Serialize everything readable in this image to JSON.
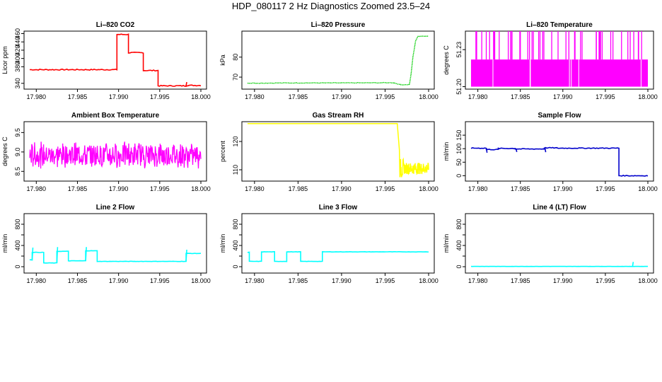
{
  "figure_title": "HDP_080117  2 Hz Diagnostics Zoomed 23.5–24",
  "chart_data": [
    {
      "id": "co2",
      "type": "line",
      "title": "Li–820 CO2",
      "ylabel": "Licor ppm",
      "color": "#ff0000",
      "xlim": [
        17.9792,
        18.0
      ],
      "ylim": [
        326,
        466
      ],
      "xticks": [
        "17.980",
        "17.985",
        "17.990",
        "17.995",
        "18.000"
      ],
      "yticks": [
        340,
        380,
        400,
        420,
        440,
        460
      ],
      "series": [
        {
          "name": "CO2",
          "style": "step",
          "noise": 1.2,
          "segments": [
            [
              17.9792,
              17.9898,
              373
            ],
            [
              17.9898,
              17.9912,
              458
            ],
            [
              17.9912,
              17.993,
              414
            ],
            [
              17.993,
              17.9948,
              371
            ],
            [
              17.9948,
              17.9982,
              334
            ],
            [
              17.9982,
              18.0,
              335
            ]
          ],
          "spikes": [
            [
              17.9982,
              343
            ]
          ]
        }
      ]
    },
    {
      "id": "pressure",
      "type": "line",
      "title": "Li–820 Pressure",
      "ylabel": "kPa",
      "color": "#00cc00",
      "xlim": [
        17.9792,
        18.0
      ],
      "ylim": [
        64,
        93
      ],
      "xticks": [
        "17.980",
        "17.985",
        "17.990",
        "17.995",
        "18.000"
      ],
      "yticks": [
        70,
        80
      ],
      "series": [
        {
          "name": "Pressure",
          "style": "points",
          "points": [
            [
              17.9792,
              67.0
            ],
            [
              17.985,
              67.1
            ],
            [
              17.99,
              67.1
            ],
            [
              17.996,
              67.2
            ],
            [
              17.9968,
              66.2
            ],
            [
              17.9978,
              66.3
            ],
            [
              17.998,
              72
            ],
            [
              17.9982,
              80
            ],
            [
              17.9985,
              88
            ],
            [
              17.9988,
              90.5
            ],
            [
              18.0,
              90.5
            ]
          ]
        }
      ]
    },
    {
      "id": "li820temp",
      "type": "line",
      "title": "Li–820 Temperature",
      "ylabel": "degrees C",
      "color": "#ff00ff",
      "xlim": [
        17.9792,
        18.0
      ],
      "ylim": [
        51.198,
        51.245
      ],
      "xticks": [
        "17.980",
        "17.985",
        "17.990",
        "17.995",
        "18.000"
      ],
      "yticks": [
        51.2,
        51.23
      ],
      "tick_labels": [
        "51.20",
        "51.23"
      ],
      "series": [
        {
          "name": "Temp",
          "style": "fill",
          "low": 51.2,
          "high": 51.222,
          "top": 51.245
        }
      ]
    },
    {
      "id": "ambient",
      "type": "line",
      "title": "Ambient Box Temperature",
      "ylabel": "degrees C",
      "color": "#ff00ff",
      "xlim": [
        17.9792,
        18.0
      ],
      "ylim": [
        8.25,
        9.78
      ],
      "xticks": [
        "17.980",
        "17.985",
        "17.990",
        "17.995",
        "18.000"
      ],
      "yticks": [
        8.5,
        9.0,
        9.5
      ],
      "tick_labels": [
        "8.5",
        "9.0",
        "9.5"
      ],
      "series": [
        {
          "name": "Ambient",
          "style": "noise",
          "center": 8.92,
          "amp": 0.34
        }
      ]
    },
    {
      "id": "rh",
      "type": "line",
      "title": "Gas Stream RH",
      "ylabel": "percent",
      "color": "#ffff00",
      "xlim": [
        17.9792,
        18.0
      ],
      "ylim": [
        106,
        127
      ],
      "xticks": [
        "17.980",
        "17.985",
        "17.990",
        "17.995",
        "18.000"
      ],
      "yticks": [
        110,
        120
      ],
      "series": [
        {
          "name": "RH",
          "style": "rh",
          "level": 126.3,
          "drop_at": 17.9964,
          "after": 110.5
        }
      ]
    },
    {
      "id": "sampleflow",
      "type": "line",
      "title": "Sample Flow",
      "ylabel": "ml/min",
      "color": "#0000cc",
      "xlim": [
        17.9792,
        18.0
      ],
      "ylim": [
        -20,
        200
      ],
      "xticks": [
        "17.980",
        "17.985",
        "17.990",
        "17.995",
        "18.000"
      ],
      "yticks": [
        0,
        50,
        100,
        150
      ],
      "series": [
        {
          "name": "Sample",
          "style": "step",
          "noise": 1.5,
          "segments": [
            [
              17.9792,
              17.981,
              102
            ],
            [
              17.981,
              17.9824,
              97
            ],
            [
              17.9824,
              17.9844,
              101
            ],
            [
              17.9844,
              17.9878,
              99
            ],
            [
              17.9878,
              17.9893,
              103
            ],
            [
              17.9893,
              17.9966,
              102
            ],
            [
              17.9966,
              18.0,
              0
            ]
          ],
          "spikes": [
            [
              17.981,
              85
            ],
            [
              17.9845,
              88
            ],
            [
              17.9879,
              87
            ]
          ]
        }
      ]
    },
    {
      "id": "line2",
      "type": "line",
      "title": "Line 2 Flow",
      "ylabel": "ml/min",
      "color": "#00ffff",
      "xlim": [
        17.9792,
        18.0
      ],
      "ylim": [
        -120,
        1000
      ],
      "xticks": [
        "17.980",
        "17.985",
        "17.990",
        "17.995",
        "18.000"
      ],
      "yticks": [
        0,
        400,
        800
      ],
      "minor_yticks": [
        200,
        600
      ],
      "series": [
        {
          "name": "Line2",
          "style": "step",
          "noise": 3,
          "segments": [
            [
              17.9792,
              17.9795,
              130
            ],
            [
              17.9795,
              17.9809,
              270
            ],
            [
              17.9809,
              17.9825,
              70
            ],
            [
              17.9825,
              17.9839,
              290
            ],
            [
              17.9839,
              17.986,
              110
            ],
            [
              17.986,
              17.9874,
              300
            ],
            [
              17.9874,
              17.9982,
              100
            ],
            [
              17.9982,
              18.0,
              250
            ]
          ],
          "spikes": [
            [
              17.9795,
              360
            ],
            [
              17.9825,
              370
            ],
            [
              17.986,
              370
            ],
            [
              17.9982,
              320
            ]
          ]
        }
      ]
    },
    {
      "id": "line3",
      "type": "line",
      "title": "Line 3 Flow",
      "ylabel": "ml/min",
      "color": "#00ffff",
      "xlim": [
        17.9792,
        18.0
      ],
      "ylim": [
        -120,
        1000
      ],
      "xticks": [
        "17.980",
        "17.985",
        "17.990",
        "17.995",
        "18.000"
      ],
      "yticks": [
        0,
        400,
        800
      ],
      "minor_yticks": [
        200,
        600
      ],
      "series": [
        {
          "name": "Line3",
          "style": "step",
          "noise": 3,
          "segments": [
            [
              17.9792,
              17.9794,
              270
            ],
            [
              17.9794,
              17.9808,
              100
            ],
            [
              17.9808,
              17.9823,
              280
            ],
            [
              17.9823,
              17.9837,
              100
            ],
            [
              17.9837,
              17.9853,
              280
            ],
            [
              17.9853,
              17.9878,
              100
            ],
            [
              17.9878,
              18.0,
              280
            ]
          ],
          "spikes": []
        }
      ]
    },
    {
      "id": "line4",
      "type": "line",
      "title": "Line 4 (LT) Flow",
      "ylabel": "ml/min",
      "color": "#00ffff",
      "xlim": [
        17.9792,
        18.0
      ],
      "ylim": [
        -120,
        1000
      ],
      "xticks": [
        "17.980",
        "17.985",
        "17.990",
        "17.995",
        "18.000"
      ],
      "yticks": [
        0,
        400,
        800
      ],
      "minor_yticks": [
        200,
        600
      ],
      "series": [
        {
          "name": "Line4",
          "style": "step",
          "noise": 1,
          "segments": [
            [
              17.9792,
              17.9982,
              5
            ],
            [
              17.9982,
              18.0,
              5
            ]
          ],
          "spikes": [
            [
              17.9982,
              90
            ]
          ]
        }
      ]
    }
  ]
}
